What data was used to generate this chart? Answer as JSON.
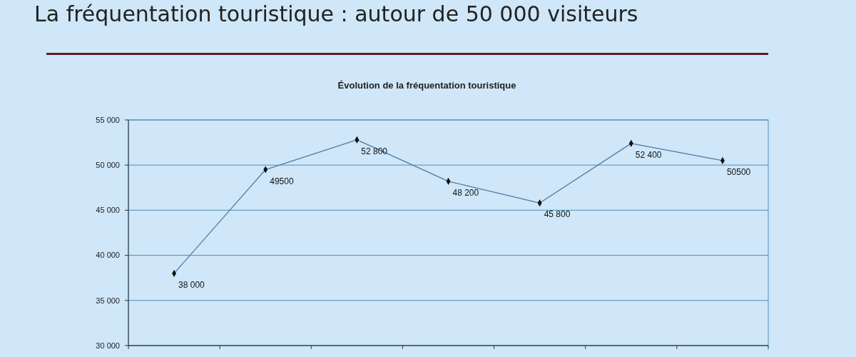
{
  "chart_data": {
    "type": "line",
    "title": "La fréquentation touristique : autour de 50 000 visiteurs",
    "subtitle": "Évolution de la fréquentation touristique",
    "categories": [
      null,
      null,
      null,
      null,
      null,
      null,
      null
    ],
    "series": [
      {
        "color": "#4f7aa6",
        "values": [
          38000,
          49500,
          52800,
          48200,
          45800,
          52400,
          50500
        ],
        "value_labels": [
          "38 000",
          "49500",
          "52 800",
          "48 200",
          "45 800",
          "52 400",
          "50500"
        ]
      }
    ],
    "ylim": [
      30000,
      55000
    ],
    "yticks": [
      {
        "value": 30000,
        "label": "30 000"
      },
      {
        "value": 35000,
        "label": "35 000"
      },
      {
        "value": 40000,
        "label": "40 000"
      },
      {
        "value": 45000,
        "label": "45 000"
      },
      {
        "value": 50000,
        "label": "50 000"
      },
      {
        "value": 55000,
        "label": "55 000"
      }
    ],
    "grid": "y",
    "marker": "diamond",
    "line_style": "solid"
  }
}
